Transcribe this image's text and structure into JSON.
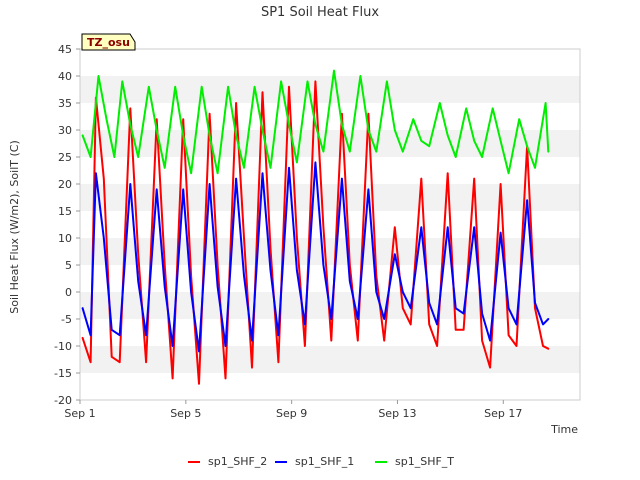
{
  "chart_data": {
    "type": "line",
    "title": "SP1 Soil Heat Flux",
    "xlabel": "Time",
    "ylabel": "Soil Heat Flux (W/m2), SoilT (C)",
    "site_badge": "TZ_osu",
    "xlim": [
      0.0,
      18.9
    ],
    "ylim": [
      -20,
      45
    ],
    "x_ticks": [
      {
        "value": 0,
        "label": "Sep 1"
      },
      {
        "value": 4,
        "label": "Sep 5"
      },
      {
        "value": 8,
        "label": "Sep 9"
      },
      {
        "value": 12,
        "label": "Sep 13"
      },
      {
        "value": 16,
        "label": "Sep 17"
      }
    ],
    "y_ticks": [
      -20,
      -15,
      -10,
      -5,
      0,
      5,
      10,
      15,
      20,
      25,
      30,
      35,
      40,
      45
    ],
    "grid": "horizontal bands",
    "legend_position": "bottom",
    "series": [
      {
        "name": "sp1_SHF_2",
        "color": "#ff0000",
        "x": [
          0.1,
          0.4,
          0.6,
          0.9,
          1.2,
          1.5,
          1.9,
          2.2,
          2.5,
          2.9,
          3.2,
          3.5,
          3.9,
          4.2,
          4.5,
          4.9,
          5.2,
          5.5,
          5.9,
          6.2,
          6.5,
          6.9,
          7.2,
          7.5,
          7.9,
          8.2,
          8.5,
          8.9,
          9.2,
          9.5,
          9.9,
          10.2,
          10.5,
          10.9,
          11.2,
          11.5,
          11.9,
          12.2,
          12.5,
          12.9,
          13.2,
          13.5,
          13.9,
          14.2,
          14.5,
          14.9,
          15.2,
          15.5,
          15.9,
          16.2,
          16.5,
          16.9,
          17.2,
          17.5,
          17.7
        ],
        "y": [
          -8.5,
          -13,
          36,
          21,
          -12,
          -13,
          34,
          7,
          -13,
          32,
          5,
          -16,
          32,
          3,
          -17,
          33,
          5,
          -16,
          35,
          10,
          -14,
          37,
          8,
          -13,
          38,
          10,
          -10,
          39,
          12,
          -9,
          33,
          5,
          -9,
          33,
          3,
          -9,
          12,
          -3,
          -6,
          21,
          -6,
          -10,
          22,
          -7,
          -7,
          21,
          -9,
          -14,
          20,
          -8,
          -10,
          27,
          -3,
          -10,
          -10.5
        ]
      },
      {
        "name": "sp1_SHF_1",
        "color": "#0000ff",
        "x": [
          0.1,
          0.4,
          0.6,
          0.9,
          1.2,
          1.5,
          1.9,
          2.2,
          2.5,
          2.9,
          3.2,
          3.5,
          3.9,
          4.2,
          4.5,
          4.9,
          5.2,
          5.5,
          5.9,
          6.2,
          6.5,
          6.9,
          7.2,
          7.5,
          7.9,
          8.2,
          8.5,
          8.9,
          9.2,
          9.5,
          9.9,
          10.2,
          10.5,
          10.9,
          11.2,
          11.5,
          11.9,
          12.2,
          12.5,
          12.9,
          13.2,
          13.5,
          13.9,
          14.2,
          14.5,
          14.9,
          15.2,
          15.5,
          15.9,
          16.2,
          16.5,
          16.9,
          17.2,
          17.5,
          17.7
        ],
        "y": [
          -3,
          -8,
          22,
          10,
          -7,
          -8,
          20,
          2,
          -8,
          19,
          1,
          -10,
          19,
          0,
          -11,
          20,
          1,
          -10,
          21,
          3,
          -9,
          22,
          4,
          -8,
          23,
          4,
          -6,
          24,
          5,
          -5,
          21,
          2,
          -5,
          19,
          0,
          -5,
          7,
          0,
          -3,
          12,
          -2,
          -6,
          12,
          -3,
          -4,
          12,
          -4,
          -9,
          11,
          -3,
          -6,
          17,
          -2,
          -6,
          -5
        ]
      },
      {
        "name": "sp1_SHF_T",
        "color": "#00ee00",
        "x": [
          0.1,
          0.4,
          0.7,
          1.0,
          1.3,
          1.6,
          1.9,
          2.2,
          2.6,
          2.9,
          3.2,
          3.6,
          3.9,
          4.2,
          4.6,
          4.9,
          5.2,
          5.6,
          5.9,
          6.2,
          6.6,
          6.9,
          7.2,
          7.6,
          7.9,
          8.2,
          8.6,
          8.9,
          9.2,
          9.6,
          9.9,
          10.2,
          10.6,
          10.9,
          11.2,
          11.6,
          11.9,
          12.2,
          12.6,
          12.9,
          13.2,
          13.6,
          13.9,
          14.2,
          14.6,
          14.9,
          15.2,
          15.6,
          15.9,
          16.2,
          16.6,
          16.9,
          17.2,
          17.6,
          17.7
        ],
        "y": [
          29,
          25,
          40,
          32,
          25,
          39,
          31,
          25,
          38,
          30,
          23,
          38,
          29,
          22,
          38,
          29,
          22,
          38,
          29,
          23,
          38,
          30,
          23,
          39,
          31,
          24,
          39,
          31,
          26,
          41,
          31,
          26,
          40,
          30,
          26,
          39,
          30,
          26,
          32,
          28,
          27,
          35,
          29,
          25,
          34,
          28,
          25,
          34,
          28,
          22,
          32,
          27,
          23,
          35,
          26
        ]
      }
    ]
  }
}
